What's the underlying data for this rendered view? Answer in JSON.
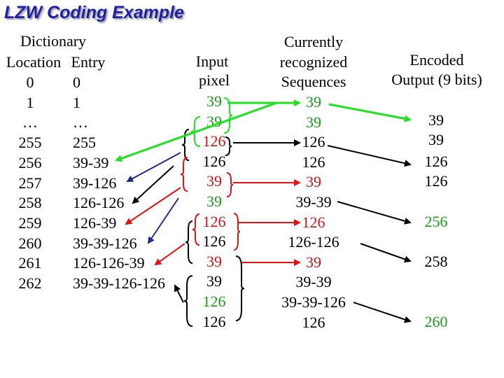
{
  "title": "LZW Coding Example",
  "dictionary": {
    "header_line1": "Dictionary",
    "header_col1": "Location",
    "header_col2": "Entry",
    "rows": [
      {
        "location": "0",
        "entry": "0",
        "color": "#000000"
      },
      {
        "location": "1",
        "entry": "1",
        "color": "#000000"
      },
      {
        "location": "…",
        "entry": "…",
        "color": "#000000"
      },
      {
        "location": "255",
        "entry": "255",
        "color": "#000000"
      },
      {
        "location": "256",
        "entry": "39-39",
        "color": "#000000"
      },
      {
        "location": "257",
        "entry": "39-126",
        "color": "#000000"
      },
      {
        "location": "258",
        "entry": "126-126",
        "color": "#000000"
      },
      {
        "location": "259",
        "entry": "126-39",
        "color": "#000000"
      },
      {
        "location": "260",
        "entry": "39-39-126",
        "color": "#000000"
      },
      {
        "location": "261",
        "entry": "126-126-39",
        "color": "#000000"
      },
      {
        "location": "262",
        "entry": "39-39-126-126",
        "color": "#000000"
      }
    ]
  },
  "input": {
    "header_line1": "Input",
    "header_line2": "pixel",
    "values": [
      {
        "text": "39",
        "color": "#1a9a1a"
      },
      {
        "text": "39",
        "color": "#1a9a1a"
      },
      {
        "text": "126",
        "color": "#c81414"
      },
      {
        "text": "126",
        "color": "#000000"
      },
      {
        "text": "39",
        "color": "#c81414"
      },
      {
        "text": "39",
        "color": "#1a9a1a"
      },
      {
        "text": "126",
        "color": "#c81414"
      },
      {
        "text": "126",
        "color": "#000000"
      },
      {
        "text": "39",
        "color": "#c81414"
      },
      {
        "text": "39",
        "color": "#000000"
      },
      {
        "text": "126",
        "color": "#1a9a1a"
      },
      {
        "text": "126",
        "color": "#000000"
      }
    ]
  },
  "recognized": {
    "header_line1": "Currently",
    "header_line2": "recognized",
    "header_line3": "Sequences",
    "values": [
      {
        "text": "39",
        "color": "#1a9a1a"
      },
      {
        "text": "39",
        "color": "#1a9a1a"
      },
      {
        "text": "126",
        "color": "#000000"
      },
      {
        "text": "126",
        "color": "#000000"
      },
      {
        "text": "39",
        "color": "#c81414"
      },
      {
        "text": "39-39",
        "color": "#000000"
      },
      {
        "text": "126",
        "color": "#c81414"
      },
      {
        "text": "126-126",
        "color": "#000000"
      },
      {
        "text": "39",
        "color": "#c81414"
      },
      {
        "text": "39-39",
        "color": "#000000"
      },
      {
        "text": "39-39-126",
        "color": "#000000"
      },
      {
        "text": "126",
        "color": "#000000"
      }
    ]
  },
  "output": {
    "header_line1": "Encoded",
    "header_line2": "Output (9 bits)",
    "values": [
      {
        "text": "39",
        "color": "#000000"
      },
      {
        "text": "39",
        "color": "#000000"
      },
      {
        "text": "126",
        "color": "#000000"
      },
      {
        "text": "126",
        "color": "#000000"
      },
      {
        "text": "256",
        "color": "#1a9a1a"
      },
      {
        "text": "258",
        "color": "#000000"
      },
      {
        "text": "260",
        "color": "#1a9a1a"
      }
    ]
  },
  "colors": {
    "title": "#1f1fa8",
    "green": "#21e021",
    "red": "#e01414",
    "black": "#000000",
    "navy": "#1f2a8a"
  }
}
